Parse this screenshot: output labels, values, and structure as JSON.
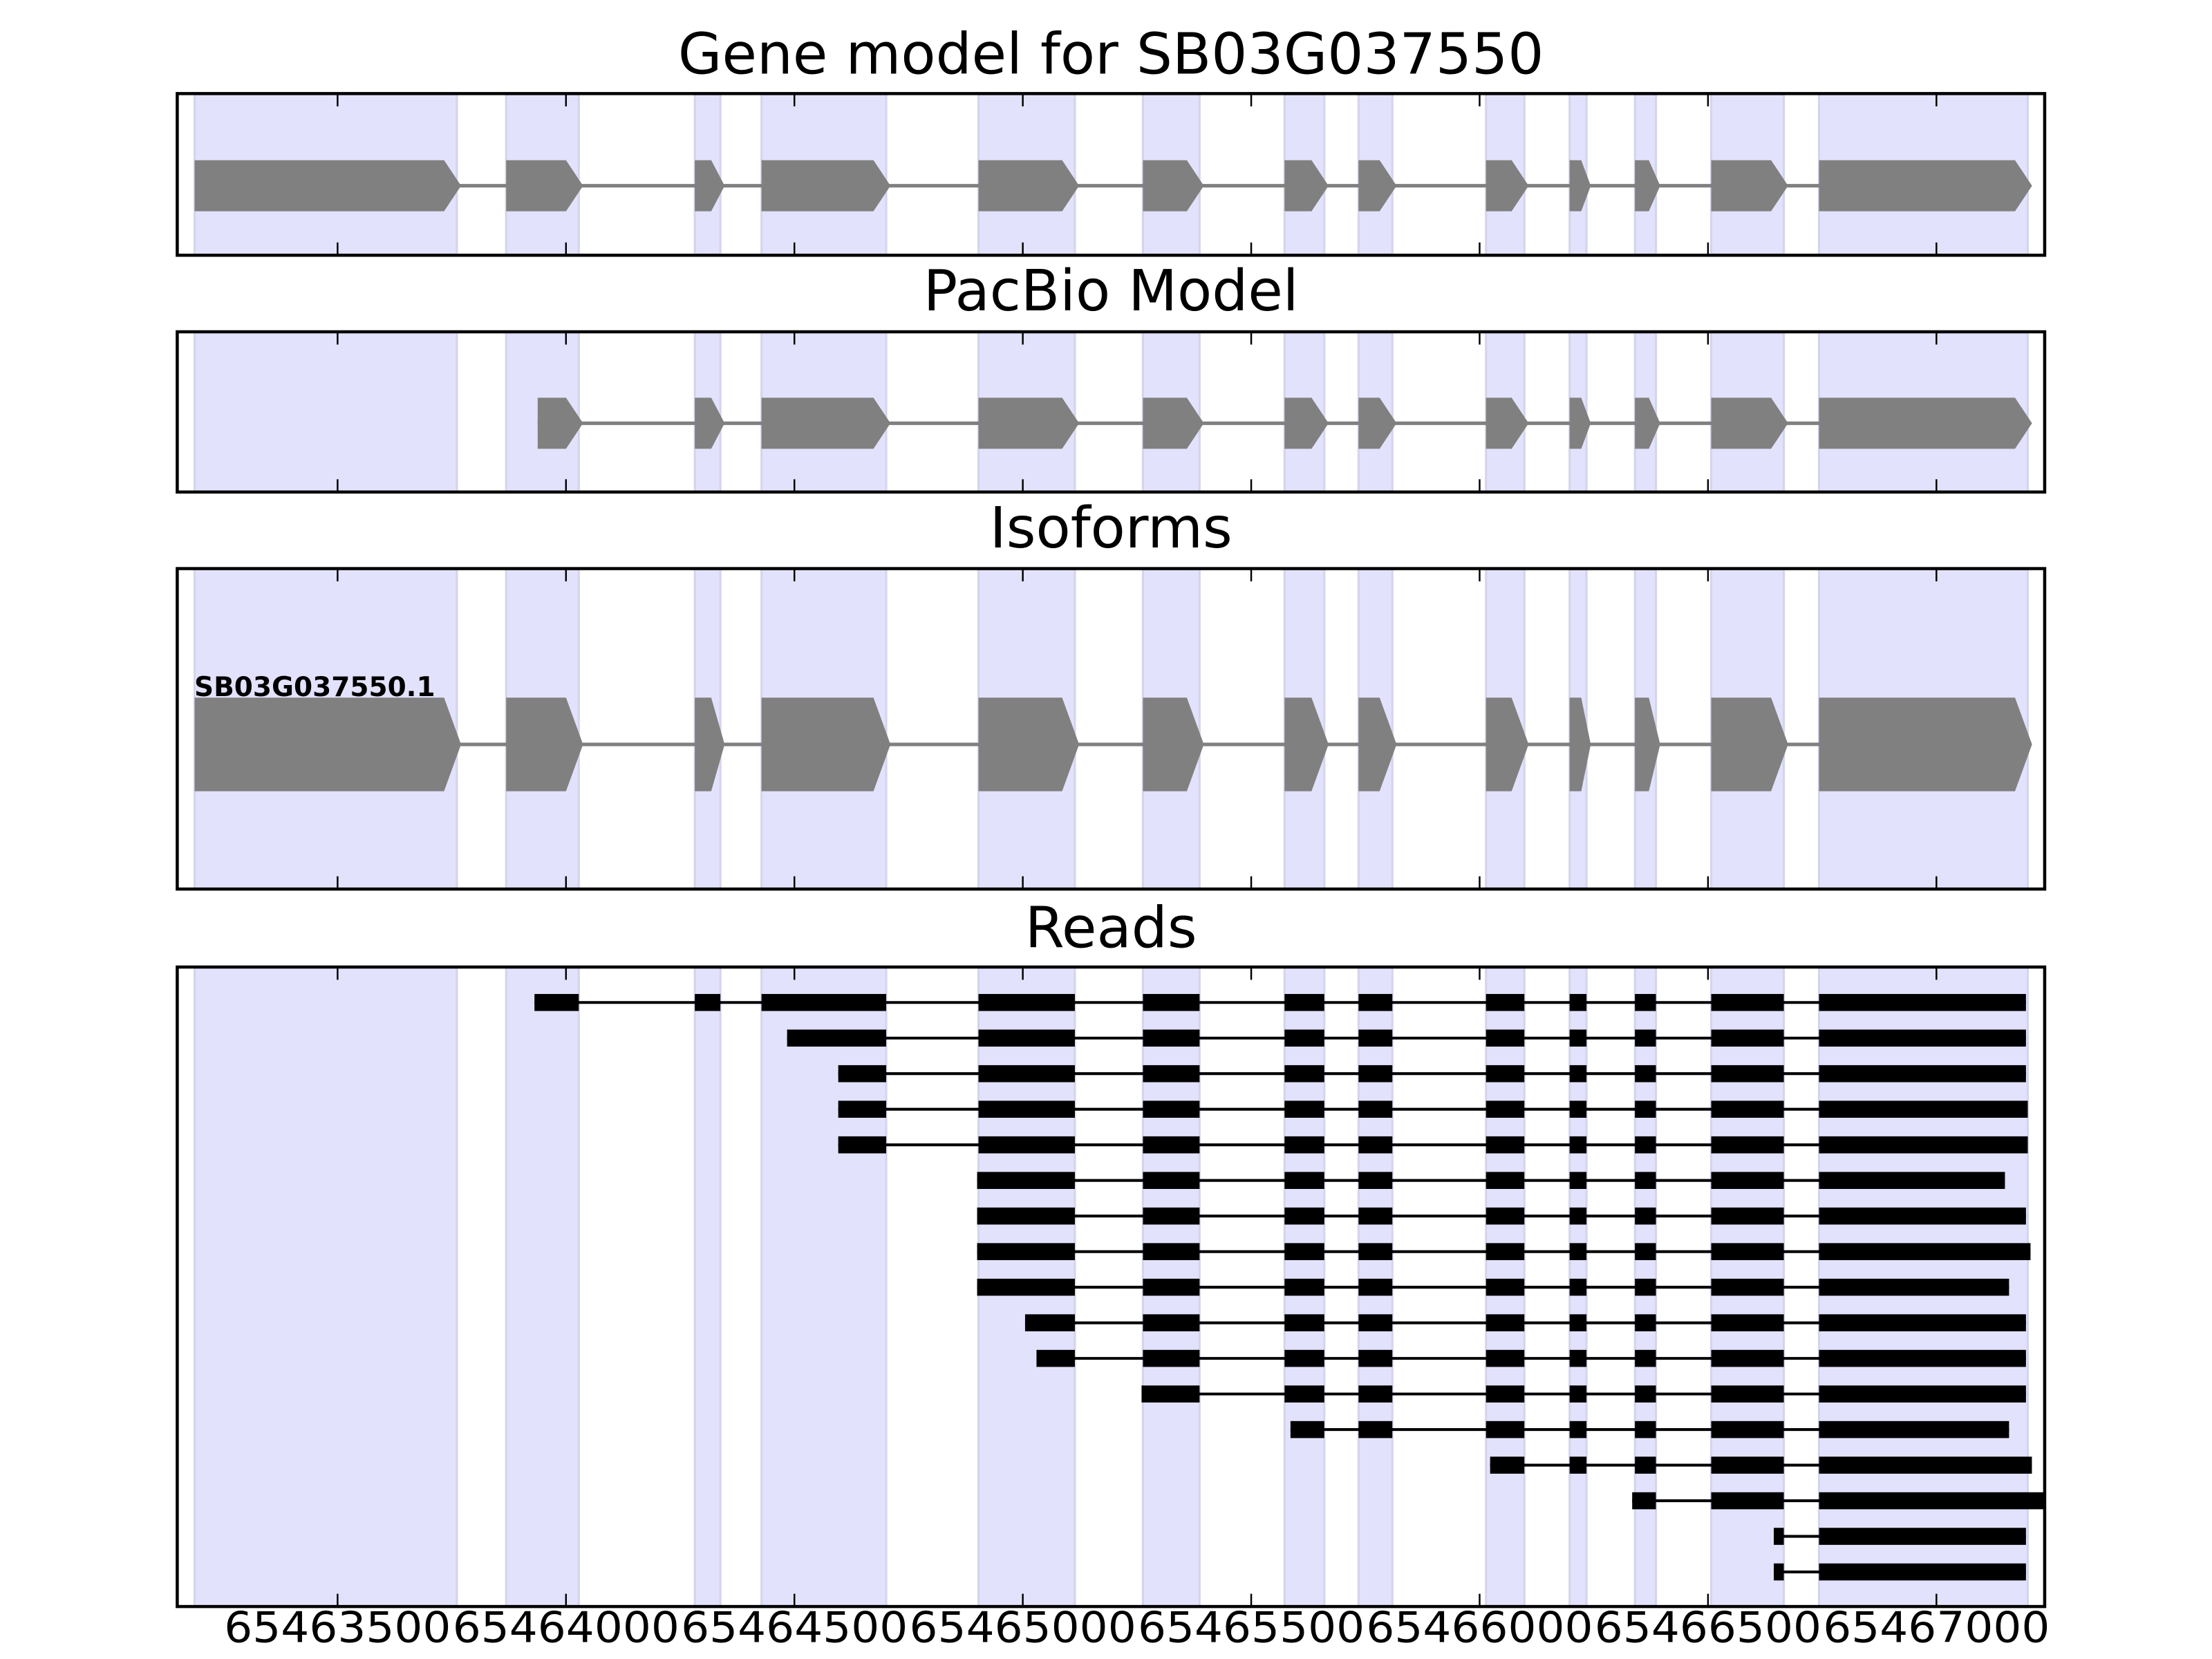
{
  "chart_data": {
    "type": "gene-track",
    "xlim": [
      65463149,
      65467237
    ],
    "xticks": [
      65463500,
      65464000,
      65464500,
      65465000,
      65465500,
      65466000,
      65466500,
      65467000
    ],
    "xtick_labels": [
      "65463500",
      "65464000",
      "65464500",
      "65465000",
      "65465500",
      "65466000",
      "65466500",
      "65467000"
    ],
    "colors": {
      "shade": "#e2e2fc",
      "shade_edge": "#d4d4ec",
      "exon": "#808080",
      "read": "#000000"
    },
    "exons": [
      [
        65463187,
        65463761
      ],
      [
        65463869,
        65464028
      ],
      [
        65464282,
        65464338
      ],
      [
        65464428,
        65464701
      ],
      [
        65464903,
        65465114
      ],
      [
        65465263,
        65465387
      ],
      [
        65465573,
        65465660
      ],
      [
        65465735,
        65465809
      ],
      [
        65466014,
        65466098
      ],
      [
        65466197,
        65466234
      ],
      [
        65466340,
        65466386
      ],
      [
        65466507,
        65466666
      ],
      [
        65466743,
        65467200
      ]
    ],
    "panels": [
      {
        "title": "Gene model for SB03G037550",
        "kind": "model",
        "first_exon": 0,
        "first_start": 65463187
      },
      {
        "title": "PacBio Model",
        "kind": "model",
        "first_exon": 1,
        "first_start": 65463938
      },
      {
        "title": "Isoforms",
        "kind": "isoform",
        "label": "SB03G037550.1",
        "first_exon": 0,
        "first_start": 65463187
      },
      {
        "title": "Reads",
        "kind": "reads"
      }
    ],
    "reads": [
      {
        "first_exon": 1,
        "start": 65463931,
        "end": 65467196
      },
      {
        "first_exon": 3,
        "start": 65464484,
        "end": 65467196
      },
      {
        "first_exon": 3,
        "start": 65464596,
        "end": 65467196
      },
      {
        "first_exon": 3,
        "start": 65464596,
        "end": 65467200
      },
      {
        "first_exon": 3,
        "start": 65464596,
        "end": 65467200
      },
      {
        "first_exon": 4,
        "start": 65464900,
        "end": 65467150
      },
      {
        "first_exon": 4,
        "start": 65464900,
        "end": 65467196
      },
      {
        "first_exon": 4,
        "start": 65464900,
        "end": 65467206
      },
      {
        "first_exon": 4,
        "start": 65464900,
        "end": 65467159
      },
      {
        "first_exon": 4,
        "start": 65465005,
        "end": 65467196
      },
      {
        "first_exon": 4,
        "start": 65465030,
        "end": 65467196
      },
      {
        "first_exon": 5,
        "start": 65465260,
        "end": 65467196
      },
      {
        "first_exon": 6,
        "start": 65465586,
        "end": 65467159
      },
      {
        "first_exon": 8,
        "start": 65466023,
        "end": 65467209
      },
      {
        "first_exon": 10,
        "start": 65466334,
        "end": 65467240
      },
      {
        "first_exon": 11,
        "start": 65466644,
        "end": 65467196
      },
      {
        "first_exon": 11,
        "start": 65466644,
        "end": 65467196
      }
    ]
  }
}
